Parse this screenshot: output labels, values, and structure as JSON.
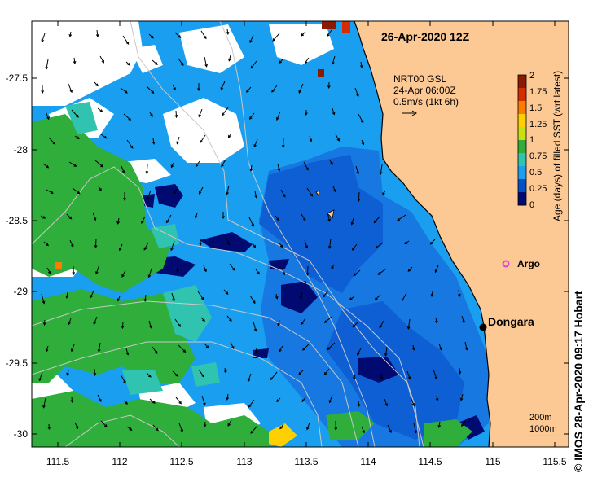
{
  "title": "26-Apr-2020 12Z",
  "vector_key": {
    "line1": "NRT00 GSL",
    "line2": "24-Apr 06:00Z",
    "line3": "0.5m/s (1kt 6h)"
  },
  "colorbar": {
    "label": "Age (days) of filled SST (wrt latest)",
    "ticks": [
      "2",
      "1.75",
      "1.5",
      "1.25",
      "1",
      "0.75",
      "0.5",
      "0.25",
      "0"
    ],
    "colors": [
      "#8b1a00",
      "#d42d00",
      "#ff7a00",
      "#ffd000",
      "#c8e010",
      "#2fae3b",
      "#2fc3b0",
      "#1a9ff0",
      "#0050c8",
      "#000a70"
    ]
  },
  "places": [
    {
      "name": "Dongara",
      "lon": 114.93,
      "lat": -29.25
    },
    {
      "name": "Argo",
      "lon": 115.12,
      "lat": -28.85
    }
  ],
  "isobaths": {
    "line1": "200m",
    "line2": "1000m"
  },
  "x_axis": {
    "min": 111.3,
    "max": 115.6,
    "ticks": [
      "111.5",
      "112",
      "112.5",
      "113",
      "113.5",
      "114",
      "114.5",
      "115",
      "115.5"
    ]
  },
  "y_axis": {
    "min": -30.1,
    "max": -27.1,
    "ticks": [
      "-27.5",
      "-28",
      "-28.5",
      "-29",
      "-29.5",
      "-30"
    ]
  },
  "credit": "© IMOS 28-Apr-2020 09:17 Hobart",
  "colors": {
    "land": "#fcc893",
    "coast": "#000000",
    "contour": "#c8c8c8"
  }
}
